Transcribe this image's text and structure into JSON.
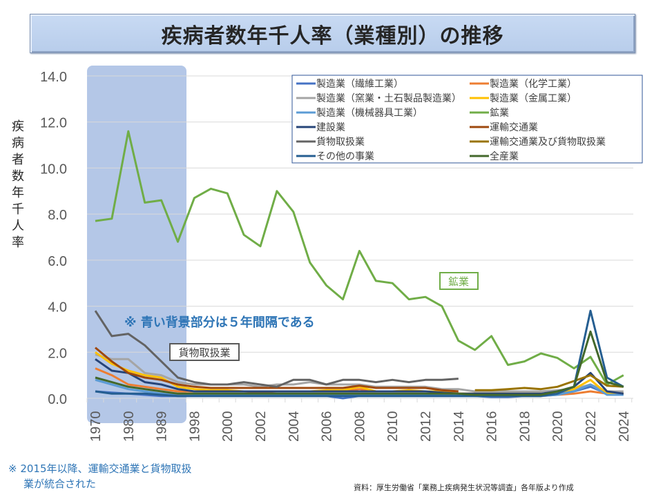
{
  "title": "疾病者数年千人率（業種別）の推移",
  "footnote": {
    "line1": "※ 2015年以降、運輸交通業と貨物取扱",
    "line2": "業が統合された"
  },
  "source": "資料：厚生労働省「業務上疾病発生状況等調査」各年版より作成",
  "chart_data": {
    "type": "line",
    "title": "疾病者数年千人率（業種別）の推移",
    "xlabel": "",
    "ylabel": "疾病者数年千人率",
    "ylim": [
      0,
      14
    ],
    "yticks": [
      "0.0",
      "2.0",
      "4.0",
      "6.0",
      "8.0",
      "10.0",
      "12.0",
      "14.0"
    ],
    "grid": true,
    "legend_position": "top-right",
    "shaded_region": {
      "from": "1970",
      "to": "1993",
      "note": "※ 青い背景部分は５年間隔である"
    },
    "annotations": [
      {
        "text": "鉱業",
        "series": "鉱業",
        "x": "2013"
      },
      {
        "text": "貨物取扱業",
        "series": "貨物取扱業",
        "x": "1993"
      }
    ],
    "categories": [
      "1970",
      "1975",
      "1980",
      "1985",
      "1989",
      "1993",
      "1998",
      "1999",
      "2000",
      "2001",
      "2002",
      "2003",
      "2004",
      "2005",
      "2006",
      "2007",
      "2008",
      "2009",
      "2010",
      "2011",
      "2012",
      "2013",
      "2014",
      "2015",
      "2016",
      "2017",
      "2018",
      "2019",
      "2020",
      "2021",
      "2022",
      "2023",
      "2024"
    ],
    "visible_tick_labels": [
      "1970",
      "1980",
      "1989",
      "1998",
      "2000",
      "2002",
      "2004",
      "2006",
      "2008",
      "2010",
      "2012",
      "2014",
      "2016",
      "2018",
      "2020",
      "2022",
      "2024"
    ],
    "series": [
      {
        "name": "製造業（繊維工業）",
        "color": "#4472c4",
        "values": [
          0.3,
          0.25,
          0.2,
          0.15,
          0.1,
          0.1,
          0.1,
          0.1,
          0.1,
          0.1,
          0.1,
          0.1,
          0.1,
          0.1,
          0.1,
          0.0,
          0.1,
          0.1,
          0.1,
          0.1,
          0.1,
          0.1,
          0.1,
          0.1,
          0.05,
          0.05,
          0.1,
          0.1,
          0.2,
          0.3,
          0.5,
          0.2,
          0.2
        ]
      },
      {
        "name": "製造業（化学工業）",
        "color": "#ed7d31",
        "values": [
          1.3,
          1.0,
          0.6,
          0.5,
          0.4,
          0.3,
          0.3,
          0.3,
          0.3,
          0.3,
          0.25,
          0.3,
          0.3,
          0.3,
          0.3,
          0.3,
          0.4,
          0.3,
          0.3,
          0.3,
          0.3,
          0.3,
          0.2,
          0.2,
          0.1,
          0.1,
          0.1,
          0.1,
          0.15,
          0.2,
          0.3,
          0.2,
          0.2
        ]
      },
      {
        "name": "製造業（窯業・土石製品製造業）",
        "color": "#a5a5a5",
        "values": [
          1.9,
          1.7,
          1.7,
          1.1,
          1.0,
          0.7,
          0.6,
          0.6,
          0.6,
          0.6,
          0.5,
          0.6,
          0.6,
          0.7,
          0.6,
          0.6,
          0.6,
          0.5,
          0.5,
          0.5,
          0.5,
          0.4,
          0.4,
          0.3,
          0.3,
          0.3,
          0.3,
          0.3,
          0.35,
          0.4,
          0.6,
          0.3,
          0.3
        ]
      },
      {
        "name": "製造業（金属工業）",
        "color": "#ffc000",
        "values": [
          2.0,
          1.5,
          1.2,
          1.0,
          0.9,
          0.5,
          0.4,
          0.35,
          0.35,
          0.3,
          0.3,
          0.3,
          0.3,
          0.3,
          0.35,
          0.35,
          0.5,
          0.3,
          0.3,
          0.35,
          0.3,
          0.3,
          0.2,
          0.2,
          0.2,
          0.2,
          0.2,
          0.2,
          0.25,
          0.4,
          0.8,
          0.2,
          0.2
        ]
      },
      {
        "name": "製造業（機械器具工業）",
        "color": "#5b9bd5",
        "values": [
          0.8,
          0.6,
          0.4,
          0.3,
          0.2,
          0.15,
          0.15,
          0.15,
          0.15,
          0.15,
          0.15,
          0.15,
          0.15,
          0.15,
          0.15,
          0.15,
          0.15,
          0.15,
          0.15,
          0.15,
          0.15,
          0.15,
          0.15,
          0.1,
          0.1,
          0.1,
          0.1,
          0.1,
          0.15,
          0.3,
          0.6,
          0.15,
          0.15
        ]
      },
      {
        "name": "鉱業",
        "color": "#70ad47",
        "values": [
          7.7,
          7.8,
          11.6,
          8.5,
          8.6,
          6.8,
          8.7,
          9.1,
          8.9,
          7.1,
          6.6,
          9.0,
          8.1,
          5.9,
          4.9,
          4.3,
          6.4,
          5.1,
          5.0,
          4.3,
          4.4,
          4.0,
          2.5,
          2.1,
          2.7,
          1.45,
          1.6,
          1.95,
          1.75,
          1.3,
          1.8,
          0.6,
          1.0
        ]
      },
      {
        "name": "建設業",
        "color": "#264478",
        "values": [
          1.7,
          1.2,
          1.1,
          0.7,
          0.6,
          0.4,
          0.3,
          0.3,
          0.3,
          0.3,
          0.3,
          0.3,
          0.3,
          0.3,
          0.3,
          0.3,
          0.3,
          0.3,
          0.3,
          0.3,
          0.3,
          0.25,
          0.2,
          0.2,
          0.2,
          0.2,
          0.2,
          0.2,
          0.3,
          0.5,
          1.1,
          0.3,
          0.2
        ]
      },
      {
        "name": "運輸交通業",
        "color": "#9e480e",
        "values": [
          2.2,
          1.6,
          1.1,
          0.9,
          0.8,
          0.6,
          0.5,
          0.45,
          0.45,
          0.45,
          0.45,
          0.45,
          0.45,
          0.45,
          0.45,
          0.45,
          0.55,
          0.45,
          0.45,
          0.45,
          0.45,
          0.35,
          0.3
        ]
      },
      {
        "name": "貨物取扱業",
        "color": "#636363",
        "values": [
          3.8,
          2.7,
          2.8,
          2.3,
          1.6,
          0.9,
          0.7,
          0.6,
          0.6,
          0.7,
          0.6,
          0.5,
          0.8,
          0.8,
          0.6,
          0.8,
          0.8,
          0.7,
          0.8,
          0.7,
          0.8,
          0.8,
          0.85
        ]
      },
      {
        "name": "運輸交通業及び貨物取扱業",
        "color": "#997300",
        "values": [
          null,
          null,
          null,
          null,
          null,
          null,
          null,
          null,
          null,
          null,
          null,
          null,
          null,
          null,
          null,
          null,
          null,
          null,
          null,
          null,
          null,
          null,
          null,
          0.35,
          0.35,
          0.4,
          0.45,
          0.4,
          0.5,
          0.75,
          1.0,
          0.55,
          0.5
        ]
      },
      {
        "name": "その他の事業",
        "color": "#255e91",
        "values": [
          0.3,
          0.2,
          0.2,
          0.2,
          0.15,
          0.1,
          0.1,
          0.1,
          0.1,
          0.1,
          0.1,
          0.1,
          0.1,
          0.1,
          0.1,
          0.1,
          0.1,
          0.1,
          0.1,
          0.1,
          0.1,
          0.1,
          0.1,
          0.1,
          0.1,
          0.1,
          0.1,
          0.1,
          0.2,
          0.5,
          3.8,
          0.9,
          0.5
        ]
      },
      {
        "name": "全産業",
        "color": "#43682b",
        "values": [
          0.9,
          0.7,
          0.5,
          0.4,
          0.3,
          0.2,
          0.2,
          0.2,
          0.2,
          0.2,
          0.2,
          0.2,
          0.2,
          0.2,
          0.2,
          0.2,
          0.2,
          0.2,
          0.2,
          0.2,
          0.2,
          0.2,
          0.2,
          0.15,
          0.15,
          0.15,
          0.15,
          0.15,
          0.3,
          0.5,
          2.9,
          0.7,
          0.5
        ]
      }
    ]
  }
}
